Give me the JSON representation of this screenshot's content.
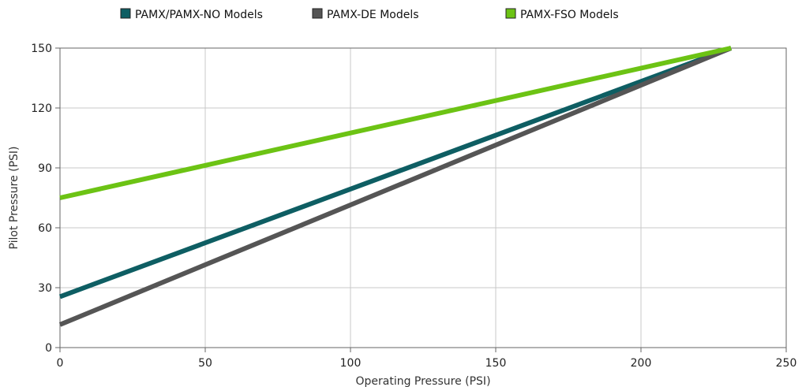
{
  "chart_data": {
    "type": "line",
    "xlabel": "Operating Pressure (PSI)",
    "ylabel": "Pilot Pressure (PSI)",
    "xlim": [
      0,
      250
    ],
    "ylim": [
      0,
      150
    ],
    "x_ticks": [
      "0",
      "50",
      "100",
      "150",
      "200",
      "250"
    ],
    "y_ticks": [
      "0",
      "30",
      "60",
      "90",
      "120",
      "150"
    ],
    "grid": true,
    "legend_position": "top",
    "series": [
      {
        "name": "PAMX/PAMX-NO Models",
        "color": "#0e5e63",
        "x": [
          0,
          231
        ],
        "y": [
          25.5,
          150
        ]
      },
      {
        "name": "PAMX-DE Models",
        "color": "#555555",
        "x": [
          0,
          231
        ],
        "y": [
          11.5,
          150
        ]
      },
      {
        "name": "PAMX-FSO Models",
        "color": "#6cc314",
        "x": [
          0,
          231
        ],
        "y": [
          75,
          150
        ]
      }
    ]
  }
}
